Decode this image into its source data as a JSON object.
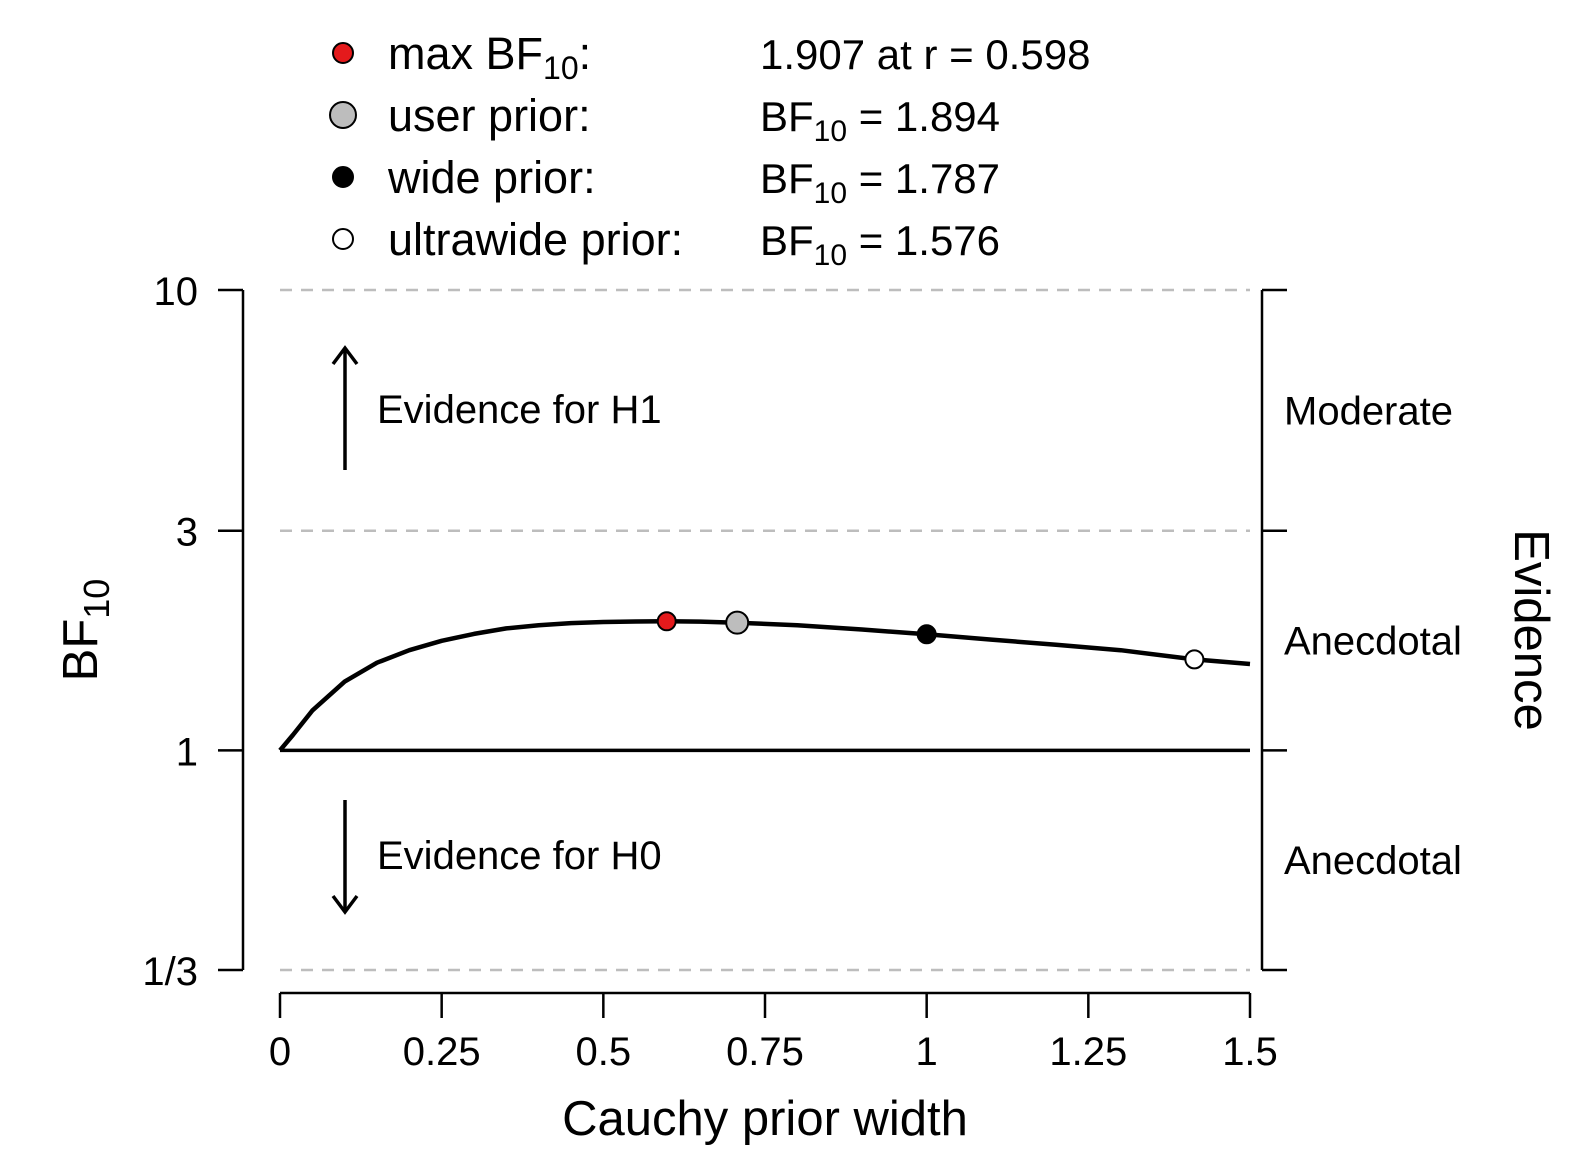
{
  "legend": [
    {
      "label": "max BF",
      "sub": "10",
      "suffix": ":",
      "value": "1.907 at r = 0.598",
      "fill": "#e41a1c",
      "size": "small"
    },
    {
      "label": "user prior:",
      "value_prefix": "BF",
      "value_sub": "10",
      "value": " = 1.894",
      "fill": "#bdbdbd",
      "size": "large"
    },
    {
      "label": "wide prior:",
      "value_prefix": "BF",
      "value_sub": "10",
      "value": " = 1.787",
      "fill": "#000000",
      "size": "small"
    },
    {
      "label": "ultrawide prior:",
      "value_prefix": "BF",
      "value_sub": "10",
      "value": " = 1.576",
      "fill": "#ffffff",
      "size": "small"
    }
  ],
  "annotations": {
    "h1": "Evidence for H1",
    "h0": "Evidence for H0"
  },
  "chart_data": {
    "type": "line",
    "xlabel": "Cauchy prior width",
    "ylabel": "BF",
    "ylabel_sub": "10",
    "right_label": "Evidence",
    "xlim": [
      0,
      1.5
    ],
    "ylim": [
      0.3333,
      10
    ],
    "y_scale": "log",
    "x_ticks": [
      {
        "v": 0,
        "label": "0"
      },
      {
        "v": 0.25,
        "label": "0.25"
      },
      {
        "v": 0.5,
        "label": "0.5"
      },
      {
        "v": 0.75,
        "label": "0.75"
      },
      {
        "v": 1,
        "label": "1"
      },
      {
        "v": 1.25,
        "label": "1.25"
      },
      {
        "v": 1.5,
        "label": "1.5"
      }
    ],
    "y_ticks": [
      {
        "v": 0.3333,
        "label": "1/3"
      },
      {
        "v": 1,
        "label": "1"
      },
      {
        "v": 3,
        "label": "3"
      },
      {
        "v": 10,
        "label": "10"
      }
    ],
    "dashed_lines": [
      0.3333,
      3,
      10
    ],
    "reference_line": 1,
    "evidence_bands": [
      {
        "label": "Moderate",
        "lo": 3,
        "hi": 10
      },
      {
        "label": "Anecdotal",
        "lo": 1,
        "hi": 3
      },
      {
        "label": "Anecdotal",
        "lo": 0.3333,
        "hi": 1
      }
    ],
    "series": [
      {
        "x": [
          0,
          0.02,
          0.05,
          0.1,
          0.15,
          0.2,
          0.25,
          0.3,
          0.35,
          0.4,
          0.45,
          0.5,
          0.55,
          0.598,
          0.65,
          0.707,
          0.8,
          0.9,
          1.0,
          1.1,
          1.2,
          1.3,
          1.414,
          1.5
        ],
        "y": [
          1.0,
          1.08,
          1.22,
          1.41,
          1.55,
          1.65,
          1.73,
          1.79,
          1.84,
          1.87,
          1.89,
          1.9,
          1.905,
          1.907,
          1.904,
          1.894,
          1.87,
          1.83,
          1.787,
          1.74,
          1.695,
          1.65,
          1.576,
          1.54
        ]
      }
    ],
    "points": [
      {
        "x": 0.598,
        "y": 1.907,
        "fill": "#e41a1c",
        "size": "small"
      },
      {
        "x": 0.707,
        "y": 1.894,
        "fill": "#bdbdbd",
        "size": "large"
      },
      {
        "x": 1.0,
        "y": 1.787,
        "fill": "#000000",
        "size": "small"
      },
      {
        "x": 1.414,
        "y": 1.576,
        "fill": "#ffffff",
        "size": "small"
      }
    ]
  }
}
